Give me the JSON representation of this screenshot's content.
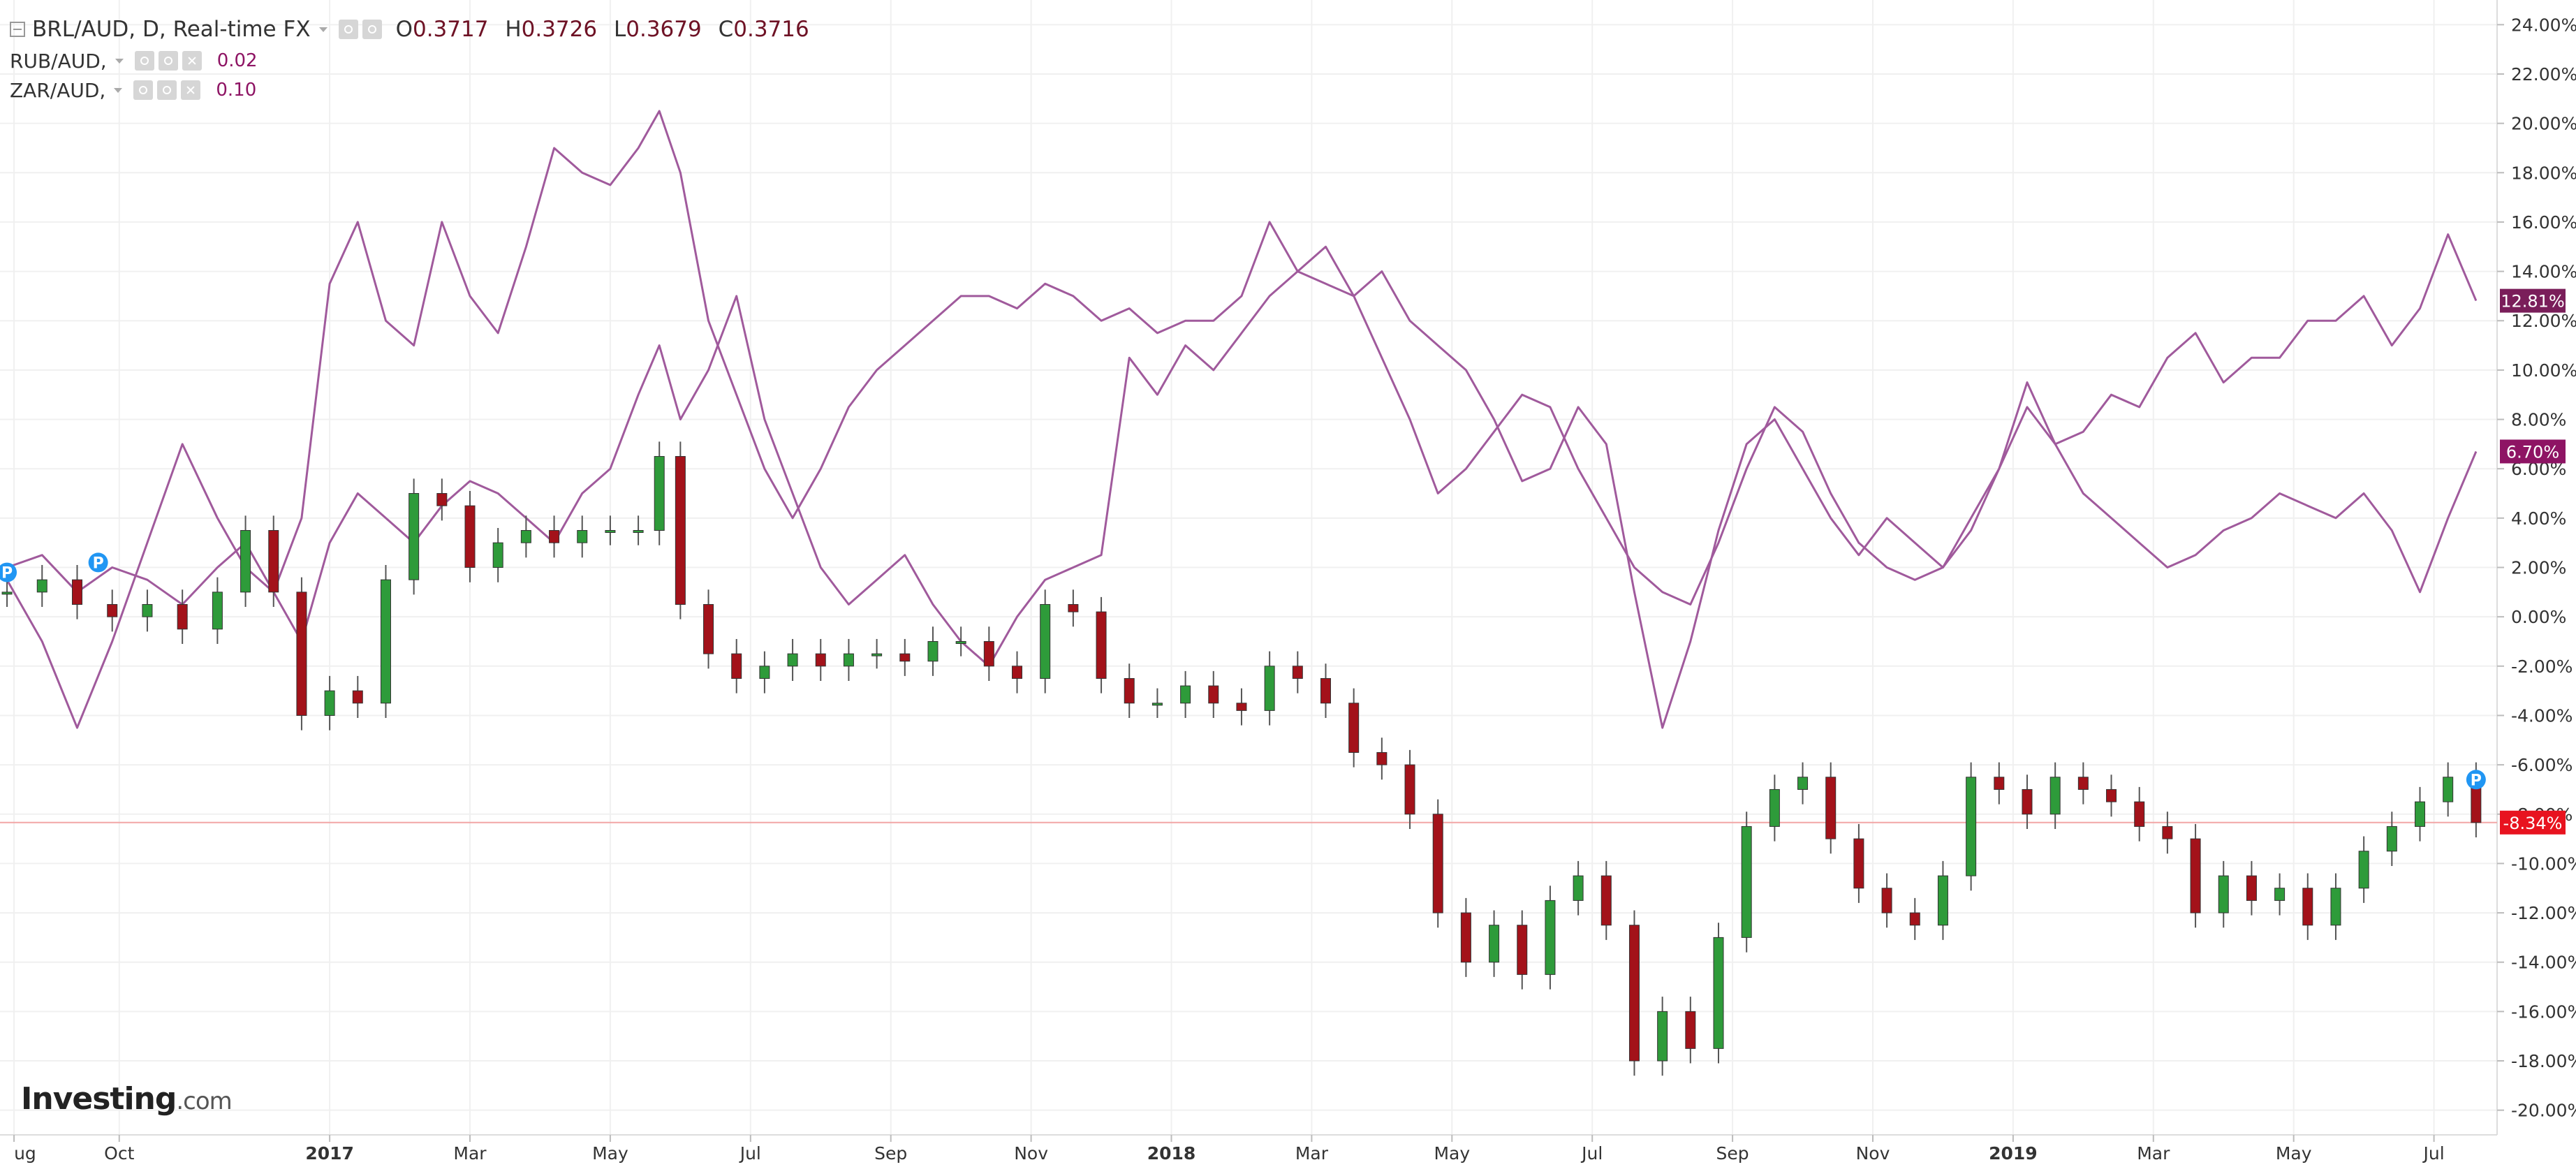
{
  "legend": {
    "main_title": "BRL/AUD, D, Real-time FX",
    "ohlc": {
      "o_label": "O",
      "o": "0.3717",
      "h_label": "H",
      "h": "0.3726",
      "l_label": "L",
      "l": "0.3679",
      "c_label": "C",
      "c": "0.3716"
    },
    "series2_title": "RUB/AUD,",
    "series2_value": "0.02",
    "series3_title": "ZAR/AUD,",
    "series3_value": "0.10"
  },
  "brand": {
    "name": "Investing",
    "domain": ".com"
  },
  "colors": {
    "up_candle": "#2e9b3a",
    "down_candle": "#a3121a",
    "compare_line": "#a05a9c",
    "last_price_line": "#f2a6a6",
    "badge_rub": "#7a1e5a",
    "badge_zar": "#8e1464",
    "badge_brl": "#e8131f",
    "marker_p": "#2196f3",
    "grid": "#f0f0f0"
  },
  "chart_data": {
    "type": "line",
    "title": "BRL/AUD, D, Real-time FX",
    "y_unit": "%",
    "ylim": [
      -21,
      25
    ],
    "y_ticks": [
      "24.00%",
      "22.00%",
      "20.00%",
      "18.00%",
      "16.00%",
      "14.00%",
      "12.00%",
      "10.00%",
      "8.00%",
      "6.00%",
      "4.00%",
      "2.00%",
      "0.00%",
      "-2.00%",
      "-4.00%",
      "-6.00%",
      "-8.00%",
      "-10.00%",
      "-12.00%",
      "-14.00%",
      "-16.00%",
      "-18.00%",
      "-20.00%"
    ],
    "x_ticks": [
      "ug",
      "Oct",
      "2017",
      "Mar",
      "May",
      "Jul",
      "Sep",
      "Nov",
      "2018",
      "Mar",
      "May",
      "Jul",
      "Sep",
      "Nov",
      "2019",
      "Mar",
      "May",
      "Jul"
    ],
    "x_tick_pos": [
      0.5,
      2,
      5,
      7,
      9,
      11,
      13,
      15,
      17,
      19,
      21,
      23,
      25,
      27,
      29,
      31,
      33,
      35
    ],
    "x_range": [
      0.3,
      35.9
    ],
    "grid": true,
    "series": [
      {
        "name": "BRL/AUD",
        "style": "candlestick",
        "x": [
          0.4,
          0.9,
          1.4,
          1.9,
          2.4,
          2.9,
          3.4,
          3.8,
          4.2,
          4.6,
          5.0,
          5.4,
          5.8,
          6.2,
          6.6,
          7.0,
          7.4,
          7.8,
          8.2,
          8.6,
          9.0,
          9.4,
          9.7,
          10.0,
          10.4,
          10.8,
          11.2,
          11.6,
          12.0,
          12.4,
          12.8,
          13.2,
          13.6,
          14.0,
          14.4,
          14.8,
          15.2,
          15.6,
          16.0,
          16.4,
          16.8,
          17.2,
          17.6,
          18.0,
          18.4,
          18.8,
          19.2,
          19.6,
          20.0,
          20.4,
          20.8,
          21.2,
          21.6,
          22.0,
          22.4,
          22.8,
          23.2,
          23.6,
          24.0,
          24.4,
          24.8,
          25.2,
          25.6,
          26.0,
          26.4,
          26.8,
          27.2,
          27.6,
          28.0,
          28.4,
          28.8,
          29.2,
          29.6,
          30.0,
          30.4,
          30.8,
          31.2,
          31.6,
          32.0,
          32.4,
          32.8,
          33.2,
          33.6,
          34.0,
          34.4,
          34.8,
          35.2,
          35.6
        ],
        "values": [
          1.0,
          1.5,
          0.5,
          0.0,
          0.5,
          -0.5,
          1.0,
          3.5,
          1.0,
          -4.0,
          -3.0,
          -3.5,
          1.5,
          5.0,
          4.5,
          2.0,
          3.0,
          3.5,
          3.0,
          3.5,
          3.5,
          3.5,
          6.5,
          0.5,
          -1.5,
          -2.5,
          -2.0,
          -1.5,
          -2.0,
          -1.5,
          -1.5,
          -1.8,
          -1.0,
          -1.0,
          -2.0,
          -2.5,
          0.5,
          0.2,
          -2.5,
          -3.5,
          -3.5,
          -2.8,
          -3.5,
          -3.8,
          -2.0,
          -2.5,
          -3.5,
          -5.5,
          -6.0,
          -8.0,
          -12.0,
          -14.0,
          -12.5,
          -14.5,
          -11.5,
          -10.5,
          -12.5,
          -18.0,
          -16.0,
          -17.5,
          -13.0,
          -8.5,
          -7.0,
          -6.5,
          -9.0,
          -11.0,
          -12.0,
          -12.5,
          -10.5,
          -6.5,
          -7.0,
          -8.0,
          -6.5,
          -7.0,
          -7.5,
          -8.5,
          -9.0,
          -12.0,
          -10.5,
          -11.5,
          -11.0,
          -12.5,
          -11.0,
          -9.5,
          -8.5,
          -7.5,
          -6.5,
          -8.34
        ]
      },
      {
        "name": "RUB/AUD",
        "style": "line",
        "x": [
          0.4,
          0.9,
          1.4,
          1.9,
          2.4,
          2.9,
          3.4,
          3.8,
          4.2,
          4.6,
          5.0,
          5.4,
          5.8,
          6.2,
          6.6,
          7.0,
          7.4,
          7.8,
          8.2,
          8.6,
          9.0,
          9.4,
          9.7,
          10.0,
          10.4,
          10.8,
          11.2,
          11.6,
          12.0,
          12.4,
          12.8,
          13.2,
          13.6,
          14.0,
          14.4,
          14.8,
          15.2,
          15.6,
          16.0,
          16.4,
          16.8,
          17.2,
          17.6,
          18.0,
          18.4,
          18.8,
          19.2,
          19.6,
          20.0,
          20.4,
          20.8,
          21.2,
          21.6,
          22.0,
          22.4,
          22.8,
          23.2,
          23.6,
          24.0,
          24.4,
          24.8,
          25.2,
          25.6,
          26.0,
          26.4,
          26.8,
          27.2,
          27.6,
          28.0,
          28.4,
          28.8,
          29.2,
          29.6,
          30.0,
          30.4,
          30.8,
          31.2,
          31.6,
          32.0,
          32.4,
          32.8,
          33.2,
          33.6,
          34.0,
          34.4,
          34.8,
          35.2,
          35.6
        ],
        "values": [
          1.5,
          -1.0,
          -4.5,
          -1.0,
          3.0,
          7.0,
          4.0,
          2.0,
          1.0,
          4.0,
          13.5,
          16.0,
          12.0,
          11.0,
          16.0,
          13.0,
          11.5,
          15.0,
          19.0,
          18.0,
          17.5,
          19.0,
          20.5,
          18.0,
          12.0,
          9.0,
          6.0,
          4.0,
          6.0,
          8.5,
          10.0,
          11.0,
          12.0,
          13.0,
          13.0,
          12.5,
          13.5,
          13.0,
          12.0,
          12.5,
          11.5,
          12.0,
          12.0,
          13.0,
          16.0,
          14.0,
          15.0,
          13.0,
          14.0,
          12.0,
          11.0,
          10.0,
          8.0,
          5.5,
          6.0,
          8.5,
          7.0,
          1.0,
          -4.5,
          -1.0,
          3.5,
          7.0,
          8.0,
          6.0,
          4.0,
          2.5,
          4.0,
          3.0,
          2.0,
          3.5,
          6.0,
          9.5,
          7.0,
          7.5,
          9.0,
          8.5,
          10.5,
          11.5,
          9.5,
          10.5,
          10.5,
          12.0,
          12.0,
          13.0,
          11.0,
          12.5,
          15.5,
          12.81
        ]
      },
      {
        "name": "ZAR/AUD",
        "style": "line",
        "x": [
          0.4,
          0.9,
          1.4,
          1.9,
          2.4,
          2.9,
          3.4,
          3.8,
          4.2,
          4.6,
          5.0,
          5.4,
          5.8,
          6.2,
          6.6,
          7.0,
          7.4,
          7.8,
          8.2,
          8.6,
          9.0,
          9.4,
          9.7,
          10.0,
          10.4,
          10.8,
          11.2,
          11.6,
          12.0,
          12.4,
          12.8,
          13.2,
          13.6,
          14.0,
          14.4,
          14.8,
          15.2,
          15.6,
          16.0,
          16.4,
          16.8,
          17.2,
          17.6,
          18.0,
          18.4,
          18.8,
          19.2,
          19.6,
          20.0,
          20.4,
          20.8,
          21.2,
          21.6,
          22.0,
          22.4,
          22.8,
          23.2,
          23.6,
          24.0,
          24.4,
          24.8,
          25.2,
          25.6,
          26.0,
          26.4,
          26.8,
          27.2,
          27.6,
          28.0,
          28.4,
          28.8,
          29.2,
          29.6,
          30.0,
          30.4,
          30.8,
          31.2,
          31.6,
          32.0,
          32.4,
          32.8,
          33.2,
          33.6,
          34.0,
          34.4,
          34.8,
          35.2,
          35.6
        ],
        "values": [
          2.0,
          2.5,
          1.0,
          2.0,
          1.5,
          0.5,
          2.0,
          3.0,
          1.0,
          -1.0,
          3.0,
          5.0,
          4.0,
          3.0,
          4.5,
          5.5,
          5.0,
          4.0,
          3.0,
          5.0,
          6.0,
          9.0,
          11.0,
          8.0,
          10.0,
          13.0,
          8.0,
          5.0,
          2.0,
          0.5,
          1.5,
          2.5,
          0.5,
          -1.0,
          -2.0,
          0.0,
          1.5,
          2.0,
          2.5,
          10.5,
          9.0,
          11.0,
          10.0,
          11.5,
          13.0,
          14.0,
          13.5,
          13.0,
          10.5,
          8.0,
          5.0,
          6.0,
          7.5,
          9.0,
          8.5,
          6.0,
          4.0,
          2.0,
          1.0,
          0.5,
          3.0,
          6.0,
          8.5,
          7.5,
          5.0,
          3.0,
          2.0,
          1.5,
          2.0,
          4.0,
          6.0,
          8.5,
          7.0,
          5.0,
          4.0,
          3.0,
          2.0,
          2.5,
          3.5,
          4.0,
          5.0,
          4.5,
          4.0,
          5.0,
          3.5,
          1.0,
          4.0,
          6.7
        ]
      }
    ],
    "last_values": [
      {
        "series": "RUB/AUD",
        "label": "12.81%",
        "value": 12.81
      },
      {
        "series": "ZAR/AUD",
        "label": "6.70%",
        "value": 6.7
      },
      {
        "series": "BRL/AUD",
        "label": "-8.34%",
        "value": -8.34
      }
    ],
    "markers": [
      {
        "label": "P",
        "x": 0.4,
        "y": 1.8
      },
      {
        "label": "P",
        "x": 1.7,
        "y": 2.2
      },
      {
        "label": "P",
        "x": 35.6,
        "y": -6.6
      }
    ]
  }
}
